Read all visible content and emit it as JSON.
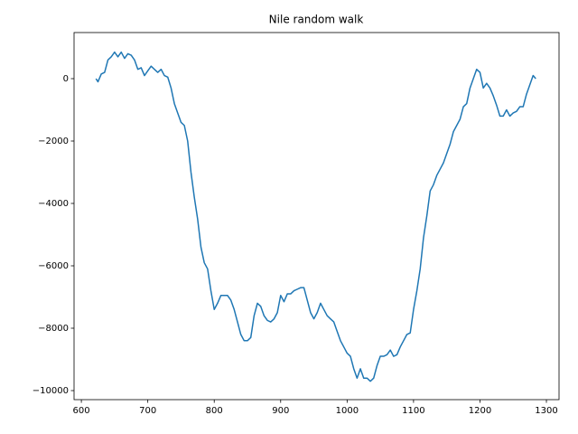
{
  "chart_data": {
    "type": "line",
    "title": "Nile random walk",
    "x": [
      622,
      625,
      630,
      635,
      640,
      645,
      650,
      655,
      660,
      665,
      670,
      675,
      680,
      685,
      690,
      695,
      700,
      705,
      710,
      715,
      720,
      725,
      730,
      735,
      740,
      745,
      750,
      755,
      760,
      765,
      770,
      775,
      780,
      785,
      790,
      795,
      800,
      805,
      810,
      820,
      825,
      830,
      835,
      840,
      845,
      850,
      855,
      860,
      865,
      870,
      875,
      880,
      885,
      890,
      895,
      900,
      905,
      910,
      915,
      920,
      925,
      930,
      935,
      940,
      945,
      950,
      955,
      960,
      965,
      970,
      975,
      980,
      985,
      990,
      995,
      1000,
      1005,
      1010,
      1015,
      1020,
      1025,
      1030,
      1035,
      1040,
      1045,
      1050,
      1055,
      1060,
      1065,
      1070,
      1075,
      1080,
      1085,
      1090,
      1095,
      1100,
      1105,
      1110,
      1115,
      1120,
      1125,
      1130,
      1135,
      1140,
      1145,
      1150,
      1155,
      1160,
      1165,
      1170,
      1175,
      1180,
      1185,
      1190,
      1195,
      1200,
      1205,
      1210,
      1215,
      1220,
      1225,
      1230,
      1235,
      1240,
      1245,
      1250,
      1255,
      1260,
      1265,
      1270,
      1275,
      1280,
      1284
    ],
    "series": [
      {
        "color": "#1f77b4",
        "values": [
          0,
          -100,
          150,
          200,
          600,
          700,
          850,
          700,
          850,
          650,
          800,
          750,
          600,
          300,
          350,
          100,
          250,
          400,
          300,
          200,
          300,
          100,
          50,
          -300,
          -800,
          -1100,
          -1400,
          -1500,
          -2000,
          -3000,
          -3800,
          -4500,
          -5400,
          -5900,
          -6100,
          -6800,
          -7400,
          -7200,
          -6950,
          -6950,
          -7100,
          -7400,
          -7800,
          -8200,
          -8400,
          -8400,
          -8300,
          -7600,
          -7200,
          -7300,
          -7600,
          -7750,
          -7800,
          -7700,
          -7500,
          -6950,
          -7150,
          -6900,
          -6900,
          -6800,
          -6750,
          -6700,
          -6700,
          -7100,
          -7500,
          -7700,
          -7500,
          -7200,
          -7400,
          -7600,
          -7700,
          -7800,
          -8100,
          -8400,
          -8600,
          -8800,
          -8900,
          -9300,
          -9600,
          -9300,
          -9600,
          -9600,
          -9700,
          -9600,
          -9200,
          -8900,
          -8900,
          -8850,
          -8700,
          -8900,
          -8850,
          -8600,
          -8400,
          -8200,
          -8150,
          -7400,
          -6800,
          -6100,
          -5100,
          -4400,
          -3600,
          -3400,
          -3100,
          -2900,
          -2700,
          -2400,
          -2100,
          -1700,
          -1500,
          -1300,
          -900,
          -800,
          -300,
          0,
          300,
          200,
          -300,
          -150,
          -300,
          -550,
          -850,
          -1200,
          -1200,
          -1000,
          -1200,
          -1100,
          -1050,
          -900,
          -900,
          -500,
          -200,
          100,
          0
        ]
      }
    ],
    "xlim": [
      589,
      1319
    ],
    "ylim": [
      -10290,
      1478
    ],
    "xticks": [
      600,
      700,
      800,
      900,
      1000,
      1100,
      1200,
      1300
    ],
    "yticks": [
      {
        "value": -10000,
        "label": "−10000"
      },
      {
        "value": -8000,
        "label": "−8000"
      },
      {
        "value": -6000,
        "label": "−6000"
      },
      {
        "value": -4000,
        "label": "−4000"
      },
      {
        "value": -2000,
        "label": "−2000"
      },
      0
    ]
  }
}
